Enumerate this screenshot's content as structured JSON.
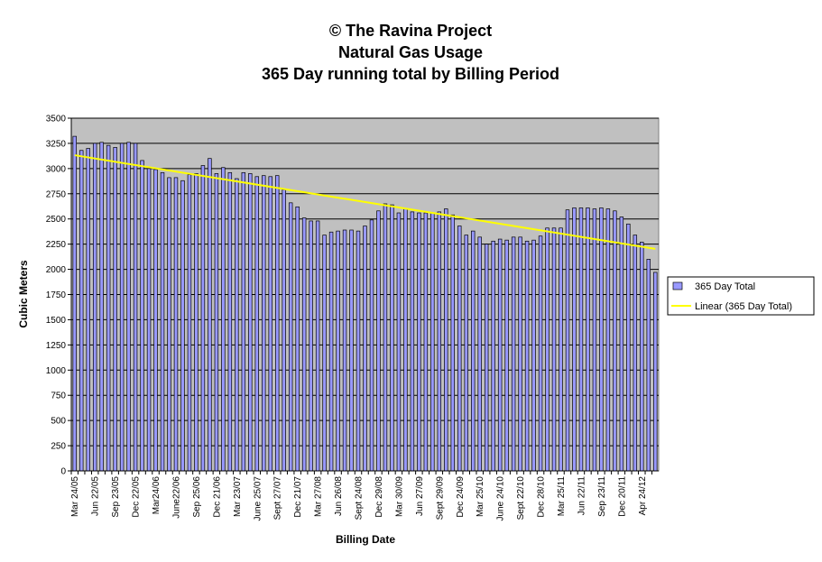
{
  "chart_data": {
    "type": "bar",
    "title": "© The Ravina Project",
    "subtitle": [
      "Natural Gas Usage",
      "365 Day running total by Billing Period"
    ],
    "x_label": "Billing Date",
    "y_label": "Cubic Meters",
    "categories": [
      "Mar 24/05",
      null,
      null,
      "Jun 22/05",
      null,
      null,
      "Sep 23/05",
      null,
      null,
      "Dec 22/05",
      null,
      null,
      "Mar24/06",
      null,
      null,
      "June22/06",
      null,
      null,
      "Sep 25/06",
      null,
      null,
      "Dec 21/06",
      null,
      null,
      "Mar 23/07",
      null,
      null,
      "June 25/07",
      null,
      null,
      "Sept 27/07",
      null,
      null,
      "Dec 21/07",
      null,
      null,
      "Mar 27/08",
      null,
      null,
      "Jun 26/08",
      null,
      null,
      "Sept 24/08",
      null,
      null,
      "Dec 29/08",
      null,
      null,
      "Mar 30/09",
      null,
      null,
      "Jun 27/09",
      null,
      null,
      "Sept 29/09",
      null,
      null,
      "Dec 24/09",
      null,
      null,
      "Mar 25/10",
      null,
      null,
      "June 24/10",
      null,
      null,
      "Sept 22/10",
      null,
      null,
      "Dec 28/10",
      null,
      null,
      "Mar 25/11",
      null,
      null,
      "Jun 22/11",
      null,
      null,
      "Sep 23/11",
      null,
      null,
      "Dec 20/11",
      null,
      null,
      "Apr 24/12",
      null,
      null
    ],
    "series": [
      {
        "name": "365 Day Total",
        "color": "#9999ff",
        "values": [
          3320,
          3180,
          3200,
          3250,
          3260,
          3230,
          3210,
          3250,
          3260,
          3250,
          3080,
          3000,
          2990,
          2960,
          2910,
          2910,
          2880,
          2940,
          2950,
          3030,
          3100,
          2950,
          3010,
          2960,
          2900,
          2960,
          2950,
          2920,
          2930,
          2920,
          2930,
          2790,
          2660,
          2620,
          2510,
          2480,
          2480,
          2340,
          2370,
          2380,
          2390,
          2390,
          2380,
          2430,
          2490,
          2580,
          2650,
          2640,
          2560,
          2600,
          2570,
          2560,
          2560,
          2560,
          2570,
          2600,
          2540,
          2430,
          2340,
          2380,
          2320,
          2250,
          2280,
          2300,
          2290,
          2320,
          2320,
          2280,
          2290,
          2330,
          2410,
          2410,
          2410,
          2590,
          2610,
          2610,
          2610,
          2600,
          2610,
          2600,
          2580,
          2520,
          2450,
          2340,
          2270,
          2100,
          1970
        ]
      }
    ],
    "trendline": {
      "name": "Linear (365 Day Total)",
      "color": "#ffff00"
    },
    "ylim": [
      0,
      3500
    ],
    "yticks": [
      0,
      250,
      500,
      750,
      1000,
      1250,
      1500,
      1750,
      2000,
      2250,
      2500,
      2750,
      3000,
      3250,
      3500
    ],
    "grid": true,
    "plot_background": "#c0c0c0",
    "legend": "right"
  }
}
